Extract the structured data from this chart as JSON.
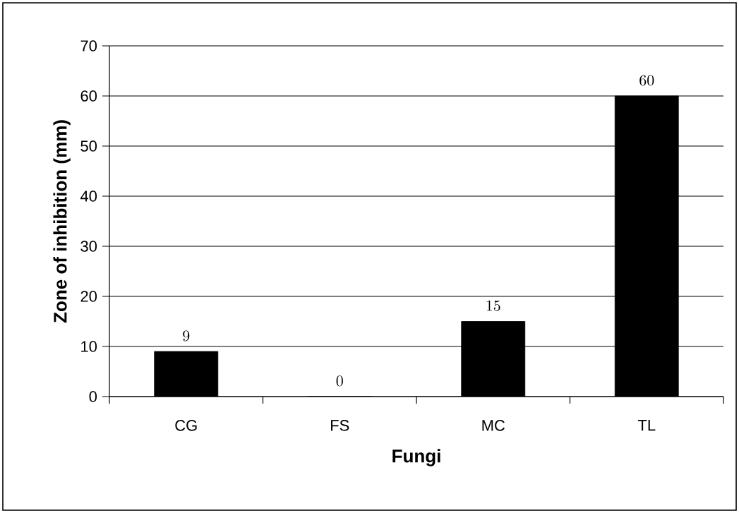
{
  "chart_data": {
    "type": "bar",
    "xlabel": "Fungi",
    "ylabel": "Zone of inhibition (mm)",
    "categories": [
      "CG",
      "FS",
      "MC",
      "TL"
    ],
    "values": [
      9,
      0,
      15,
      60
    ],
    "color": "#000000",
    "ylim": [
      0,
      70
    ],
    "yticks": [
      0,
      10,
      20,
      30,
      40,
      50,
      60,
      70
    ],
    "grid": "y",
    "data_labels": true
  }
}
